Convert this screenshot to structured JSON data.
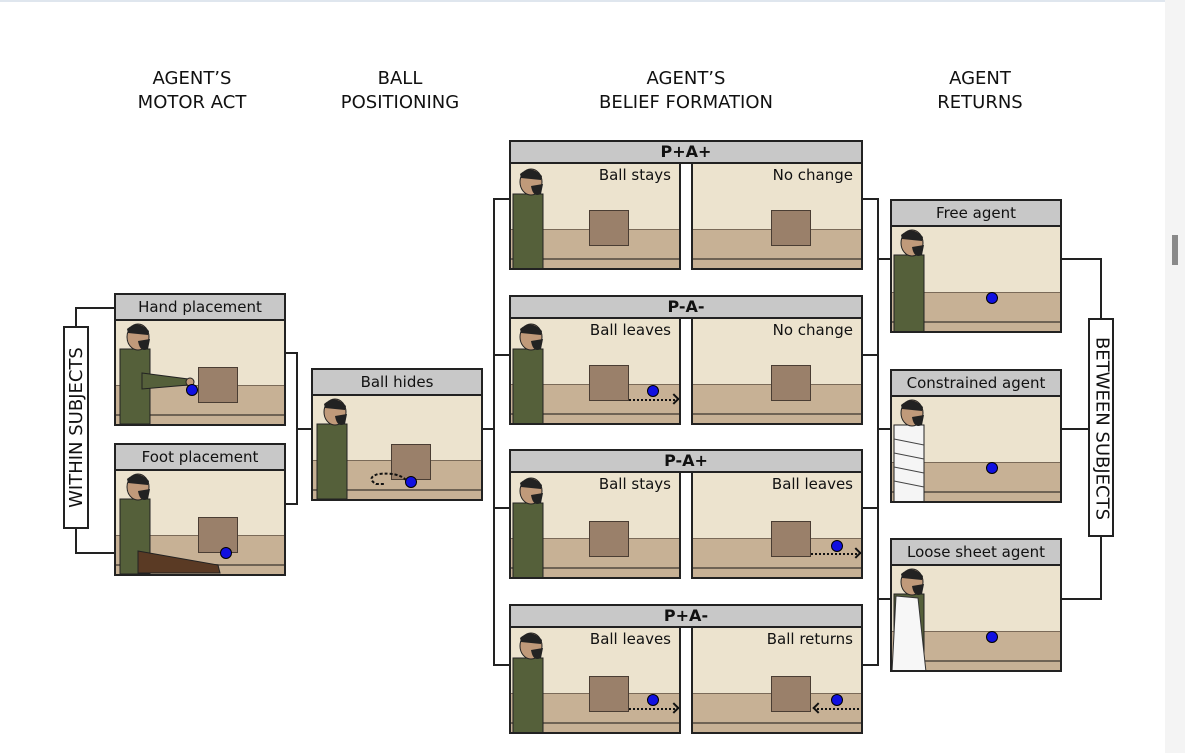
{
  "headers": {
    "motor_act": "AGENT’S\nMOTOR ACT",
    "ball_positioning": "BALL\nPOSITIONING",
    "belief_formation": "AGENT’S\nBELIEF FORMATION",
    "agent_returns": "AGENT\nRETURNS"
  },
  "side_labels": {
    "within": "WITHIN SUBJECTS",
    "between": "BETWEEN SUBJECTS"
  },
  "motor_panels": [
    {
      "title": "Hand placement"
    },
    {
      "title": "Foot placement"
    }
  ],
  "ball_panel": {
    "title": "Ball hides"
  },
  "belief_groups": [
    {
      "title": "P+A+",
      "left": "Ball stays",
      "right": "No change"
    },
    {
      "title": "P-A-",
      "left": "Ball leaves",
      "right": "No change"
    },
    {
      "title": "P-A+",
      "left": "Ball stays",
      "right": "Ball leaves"
    },
    {
      "title": "P+A-",
      "left": "Ball leaves",
      "right": "Ball returns"
    }
  ],
  "return_panels": [
    {
      "title": "Free agent"
    },
    {
      "title": "Constrained agent"
    },
    {
      "title": "Loose sheet agent"
    }
  ],
  "colors": {
    "scene_bg": "#ece3ce",
    "floor": "#c7b195",
    "box": "#9a806a",
    "ball": "#1010e0",
    "title_bar": "#c8c8c8"
  }
}
